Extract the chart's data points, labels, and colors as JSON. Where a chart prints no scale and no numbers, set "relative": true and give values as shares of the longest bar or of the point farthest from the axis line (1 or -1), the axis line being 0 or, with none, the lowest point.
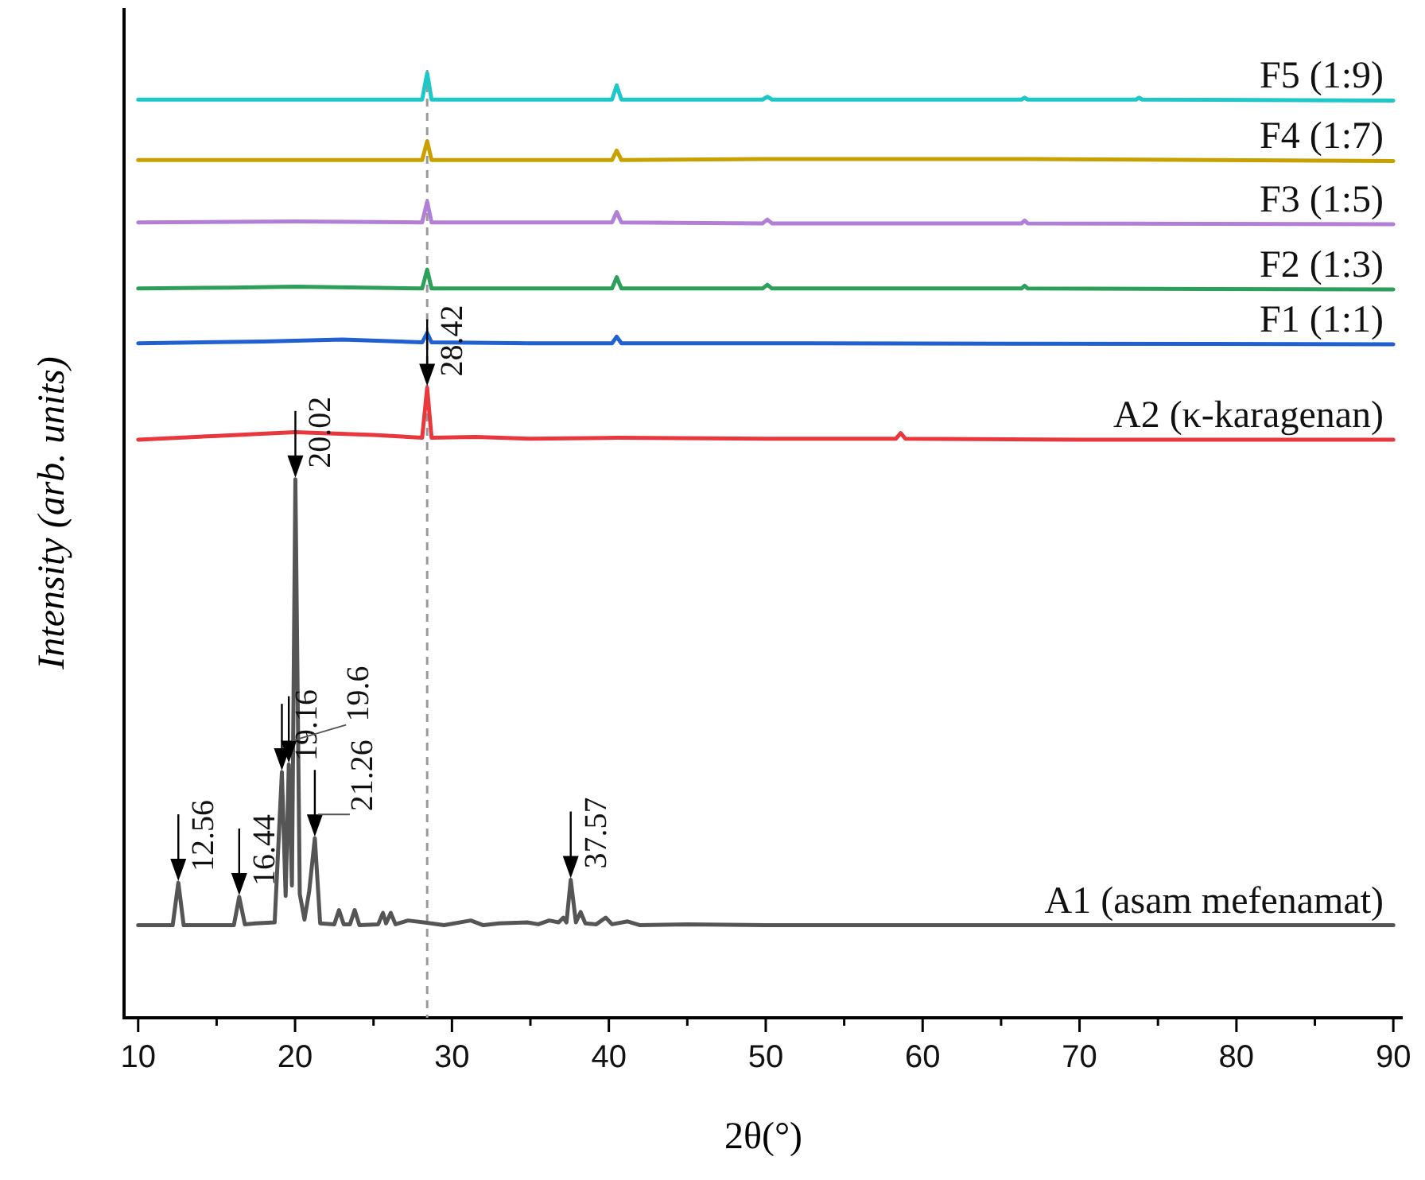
{
  "chart_data": {
    "type": "line",
    "relative": true,
    "xlabel": "2θ(°)",
    "ylabel": "Intensity (arb. units)",
    "legend": false,
    "grid": false,
    "marker": "none",
    "line_style": "solid",
    "xlim": [
      9.1,
      90.6
    ],
    "xticks": [
      10,
      {
        "value": 15,
        "label": null
      },
      20,
      {
        "value": 25,
        "label": null
      },
      30,
      {
        "value": 35,
        "label": null
      },
      40,
      {
        "value": 45,
        "label": null
      },
      50,
      {
        "value": 55,
        "label": null
      },
      60,
      {
        "value": 65,
        "label": null
      },
      70,
      {
        "value": 75,
        "label": null
      },
      80,
      {
        "value": 85,
        "label": null
      },
      90
    ],
    "ref_lines": [
      {
        "axis": "x",
        "value": 28.42,
        "color": "#999999",
        "line_style": "dashed"
      }
    ],
    "annotations": [
      {
        "text": "12.56",
        "x": 12.56,
        "y": 0.143
      },
      {
        "text": "16.44",
        "x": 16.44,
        "y": 0.128
      },
      {
        "text": "19.16",
        "x": 19.16,
        "y": 0.26
      },
      {
        "text": "19.6",
        "x": 19.6,
        "y": 0.268
      },
      {
        "text": "20.02",
        "x": 20.02,
        "y": 0.57
      },
      {
        "text": "21.26",
        "x": 21.26,
        "y": 0.19
      },
      {
        "text": "37.57",
        "x": 37.57,
        "y": 0.146
      },
      {
        "text": "28.42",
        "x": 28.42,
        "y": 0.667
      }
    ],
    "series": [
      {
        "name": "A1 (asam mefenamat)",
        "color": "#555555",
        "x": [
          10,
          12.2,
          12.56,
          12.9,
          16.1,
          16.44,
          16.8,
          17.5,
          18.7,
          19.16,
          19.4,
          19.6,
          19.8,
          20.02,
          20.3,
          20.6,
          20.9,
          21.26,
          21.6,
          22.5,
          22.8,
          23.1,
          23.5,
          23.8,
          24.1,
          25.3,
          25.6,
          25.8,
          26.1,
          26.4,
          27.2,
          28.2,
          29.5,
          31.2,
          32,
          33,
          34.8,
          35.5,
          36.2,
          36.8,
          37.1,
          37.3,
          37.57,
          37.9,
          38.2,
          38.5,
          39.2,
          39.8,
          40.2,
          41.2,
          42,
          45,
          50,
          55,
          60,
          65,
          70,
          80,
          90
        ],
        "values": [
          0.098,
          0.098,
          0.143,
          0.098,
          0.098,
          0.128,
          0.099,
          0.1,
          0.101,
          0.26,
          0.129,
          0.268,
          0.14,
          0.57,
          0.131,
          0.104,
          0.134,
          0.19,
          0.1,
          0.099,
          0.114,
          0.099,
          0.099,
          0.114,
          0.098,
          0.099,
          0.111,
          0.1,
          0.111,
          0.099,
          0.103,
          0.101,
          0.098,
          0.103,
          0.098,
          0.1,
          0.101,
          0.099,
          0.103,
          0.101,
          0.106,
          0.101,
          0.146,
          0.101,
          0.112,
          0.1,
          0.099,
          0.106,
          0.099,
          0.102,
          0.098,
          0.099,
          0.098,
          0.098,
          0.098,
          0.098,
          0.098,
          0.098,
          0.098
        ]
      },
      {
        "name": "A2 (κ-karagenan)",
        "color": "#e8383d",
        "x": [
          10,
          15,
          20,
          25,
          28.1,
          28.42,
          28.7,
          31.5,
          35,
          40.5,
          50,
          58.3,
          58.6,
          58.9,
          70,
          90
        ],
        "values": [
          0.612,
          0.616,
          0.62,
          0.617,
          0.614,
          0.667,
          0.614,
          0.615,
          0.613,
          0.614,
          0.613,
          0.613,
          0.619,
          0.613,
          0.612,
          0.612
        ]
      },
      {
        "name": "F1 (1:1)",
        "color": "#2060d0",
        "x": [
          10,
          18,
          23,
          28.1,
          28.42,
          28.7,
          35,
          40.2,
          40.5,
          40.8,
          50,
          90
        ],
        "values": [
          0.714,
          0.716,
          0.718,
          0.715,
          0.725,
          0.715,
          0.714,
          0.714,
          0.721,
          0.714,
          0.714,
          0.713
        ]
      },
      {
        "name": "F2 (1:3)",
        "color": "#2ca05a",
        "x": [
          10,
          16,
          20,
          28.1,
          28.42,
          28.7,
          40.2,
          40.5,
          40.8,
          49.8,
          50.1,
          50.4,
          66.3,
          66.5,
          66.7,
          90
        ],
        "values": [
          0.772,
          0.773,
          0.774,
          0.772,
          0.792,
          0.772,
          0.772,
          0.784,
          0.772,
          0.772,
          0.776,
          0.772,
          0.772,
          0.775,
          0.772,
          0.771
        ]
      },
      {
        "name": "F3 (1:5)",
        "color": "#b27fd6",
        "x": [
          10,
          20,
          28.1,
          28.42,
          28.7,
          40.2,
          40.5,
          40.8,
          49.8,
          50.1,
          50.4,
          66.3,
          66.5,
          66.7,
          90
        ],
        "values": [
          0.842,
          0.843,
          0.842,
          0.864,
          0.842,
          0.842,
          0.853,
          0.842,
          0.841,
          0.845,
          0.841,
          0.841,
          0.844,
          0.841,
          0.84
        ]
      },
      {
        "name": "F4 (1:7)",
        "color": "#c8a000",
        "x": [
          10,
          28.1,
          28.42,
          28.7,
          40.2,
          40.5,
          40.8,
          50,
          66.5,
          90
        ],
        "values": [
          0.908,
          0.908,
          0.928,
          0.908,
          0.908,
          0.918,
          0.908,
          0.909,
          0.909,
          0.907
        ]
      },
      {
        "name": "F5 (1:9)",
        "color": "#1ec8c8",
        "x": [
          10,
          28.1,
          28.42,
          28.7,
          40.2,
          40.5,
          40.8,
          49.8,
          50.1,
          50.4,
          66.3,
          66.5,
          66.7,
          73.6,
          73.8,
          74,
          90
        ],
        "values": [
          0.972,
          0.972,
          1,
          0.972,
          0.972,
          0.987,
          0.972,
          0.972,
          0.975,
          0.972,
          0.972,
          0.974,
          0.972,
          0.972,
          0.974,
          0.972,
          0.971
        ]
      }
    ]
  }
}
